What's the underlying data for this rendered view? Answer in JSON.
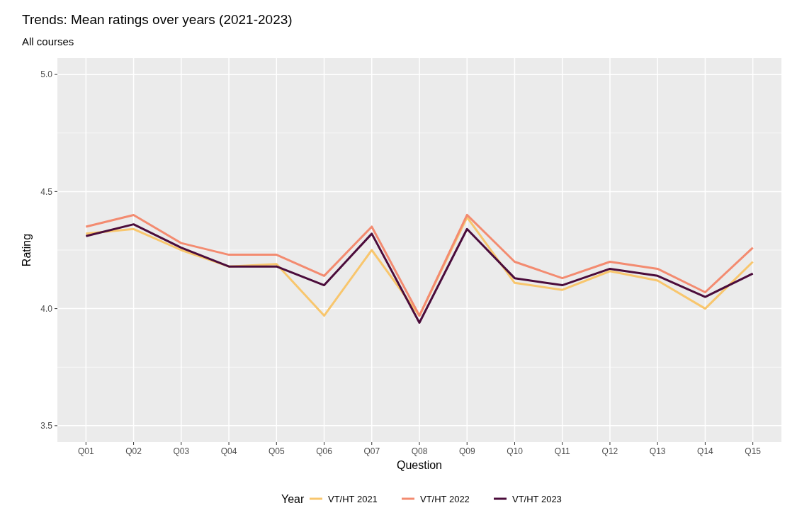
{
  "chart_data": {
    "type": "line",
    "title": "Trends: Mean ratings over years (2021-2023)",
    "subtitle": "All courses",
    "xlabel": "Question",
    "ylabel": "Rating",
    "legend_title": "Year",
    "categories": [
      "Q01",
      "Q02",
      "Q03",
      "Q04",
      "Q05",
      "Q06",
      "Q07",
      "Q08",
      "Q09",
      "Q10",
      "Q11",
      "Q12",
      "Q13",
      "Q14",
      "Q15"
    ],
    "series": [
      {
        "name": "VT/HT 2021",
        "color": "#f8c66d",
        "values": [
          4.32,
          4.34,
          4.25,
          4.18,
          4.19,
          3.97,
          4.25,
          3.97,
          4.39,
          4.11,
          4.08,
          4.16,
          4.12,
          4.0,
          4.2
        ]
      },
      {
        "name": "VT/HT 2022",
        "color": "#f38b70",
        "values": [
          4.35,
          4.4,
          4.28,
          4.23,
          4.23,
          4.14,
          4.35,
          3.97,
          4.4,
          4.2,
          4.13,
          4.2,
          4.17,
          4.07,
          4.26
        ]
      },
      {
        "name": "VT/HT 2023",
        "color": "#4b0c3b",
        "values": [
          4.31,
          4.36,
          4.26,
          4.18,
          4.18,
          4.1,
          4.32,
          3.94,
          4.34,
          4.13,
          4.1,
          4.17,
          4.14,
          4.05,
          4.15
        ]
      }
    ],
    "ylim": [
      3.43,
      5.07
    ],
    "yticks": [
      {
        "value": 3.5,
        "label": "3.5"
      },
      {
        "value": 4,
        "label": "4.0"
      },
      {
        "value": 4.5,
        "label": "4.5"
      },
      {
        "value": 5,
        "label": "5.0"
      }
    ],
    "grid": true,
    "legend": "bottom",
    "line_style": "solid",
    "marker": "none"
  }
}
